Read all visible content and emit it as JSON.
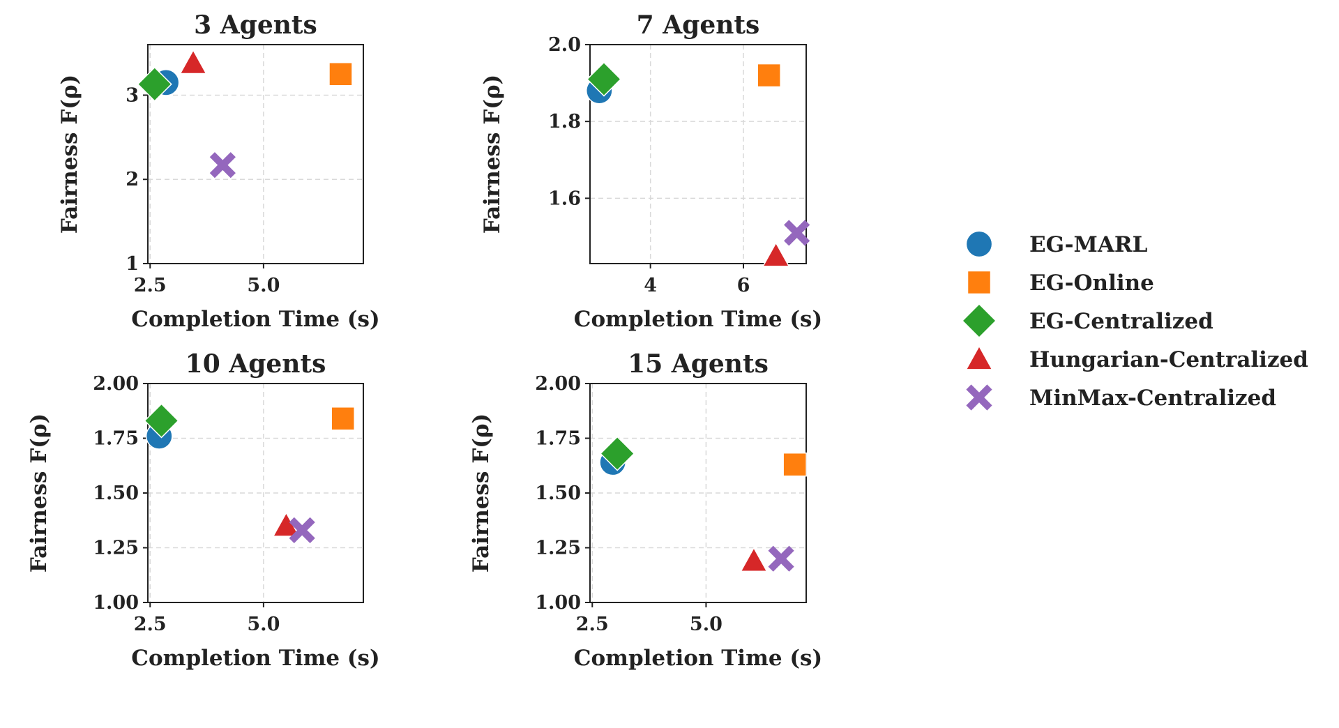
{
  "colors": {
    "EG-MARL": "#1f77b4",
    "EG-Online": "#ff7f0e",
    "EG-Centralized": "#2ca02c",
    "Hungarian-Centralized": "#d62728",
    "MinMax-Centralized": "#9467bd"
  },
  "legend": [
    {
      "label": "EG-MARL",
      "marker": "circle"
    },
    {
      "label": "EG-Online",
      "marker": "square"
    },
    {
      "label": "EG-Centralized",
      "marker": "diamond"
    },
    {
      "label": "Hungarian-Centralized",
      "marker": "triangle"
    },
    {
      "label": "MinMax-Centralized",
      "marker": "x"
    }
  ],
  "chart_data": [
    {
      "type": "scatter",
      "title": "3 Agents",
      "xlabel": "Completion Time (s)",
      "ylabel": "Fairness F(ρ)",
      "xlim": [
        2.45,
        7.2
      ],
      "ylim": [
        1.0,
        3.6
      ],
      "xticks": [
        2.5,
        5.0
      ],
      "xtick_labels": [
        "2.5",
        "5.0"
      ],
      "yticks": [
        1,
        2,
        3
      ],
      "ytick_labels": [
        "1",
        "2",
        "3"
      ],
      "points": [
        {
          "series": "EG-MARL",
          "x": 2.85,
          "y": 3.15
        },
        {
          "series": "EG-Online",
          "x": 6.7,
          "y": 3.25
        },
        {
          "series": "EG-Centralized",
          "x": 2.6,
          "y": 3.13
        },
        {
          "series": "Hungarian-Centralized",
          "x": 3.45,
          "y": 3.38
        },
        {
          "series": "MinMax-Centralized",
          "x": 4.1,
          "y": 2.17
        }
      ]
    },
    {
      "type": "scatter",
      "title": "7 Agents",
      "xlabel": "Completion Time (s)",
      "ylabel": "Fairness F(ρ)",
      "xlim": [
        2.7,
        7.35
      ],
      "ylim": [
        1.43,
        2.0
      ],
      "xticks": [
        4,
        6
      ],
      "xtick_labels": [
        "4",
        "6"
      ],
      "yticks": [
        1.6,
        1.8,
        2.0
      ],
      "ytick_labels": [
        "1.6",
        "1.8",
        "2.0"
      ],
      "points": [
        {
          "series": "EG-MARL",
          "x": 2.9,
          "y": 1.88
        },
        {
          "series": "EG-Online",
          "x": 6.55,
          "y": 1.92
        },
        {
          "series": "EG-Centralized",
          "x": 3.0,
          "y": 1.91
        },
        {
          "series": "Hungarian-Centralized",
          "x": 6.7,
          "y": 1.45
        },
        {
          "series": "MinMax-Centralized",
          "x": 7.15,
          "y": 1.51
        }
      ]
    },
    {
      "type": "scatter",
      "title": "10 Agents",
      "xlabel": "Completion Time (s)",
      "ylabel": "Fairness F(ρ)",
      "xlim": [
        2.45,
        7.2
      ],
      "ylim": [
        1.0,
        2.0
      ],
      "xticks": [
        2.5,
        5.0
      ],
      "xtick_labels": [
        "2.5",
        "5.0"
      ],
      "yticks": [
        1.0,
        1.25,
        1.5,
        1.75,
        2.0
      ],
      "ytick_labels": [
        "1.00",
        "1.25",
        "1.50",
        "1.75",
        "2.00"
      ],
      "points": [
        {
          "series": "EG-MARL",
          "x": 2.7,
          "y": 1.76
        },
        {
          "series": "EG-Online",
          "x": 6.75,
          "y": 1.84
        },
        {
          "series": "EG-Centralized",
          "x": 2.75,
          "y": 1.83
        },
        {
          "series": "Hungarian-Centralized",
          "x": 5.5,
          "y": 1.35
        },
        {
          "series": "MinMax-Centralized",
          "x": 5.85,
          "y": 1.33
        }
      ]
    },
    {
      "type": "scatter",
      "title": "15 Agents",
      "xlabel": "Completion Time (s)",
      "ylabel": "Fairness F(ρ)",
      "xlim": [
        2.45,
        7.2
      ],
      "ylim": [
        1.0,
        2.0
      ],
      "xticks": [
        2.5,
        5.0
      ],
      "xtick_labels": [
        "2.5",
        "5.0"
      ],
      "yticks": [
        1.0,
        1.25,
        1.5,
        1.75,
        2.0
      ],
      "ytick_labels": [
        "1.00",
        "1.25",
        "1.50",
        "1.75",
        "2.00"
      ],
      "points": [
        {
          "series": "EG-MARL",
          "x": 2.95,
          "y": 1.64
        },
        {
          "series": "EG-Online",
          "x": 6.95,
          "y": 1.63
        },
        {
          "series": "EG-Centralized",
          "x": 3.05,
          "y": 1.68
        },
        {
          "series": "Hungarian-Centralized",
          "x": 6.05,
          "y": 1.19
        },
        {
          "series": "MinMax-Centralized",
          "x": 6.65,
          "y": 1.2
        }
      ]
    }
  ]
}
